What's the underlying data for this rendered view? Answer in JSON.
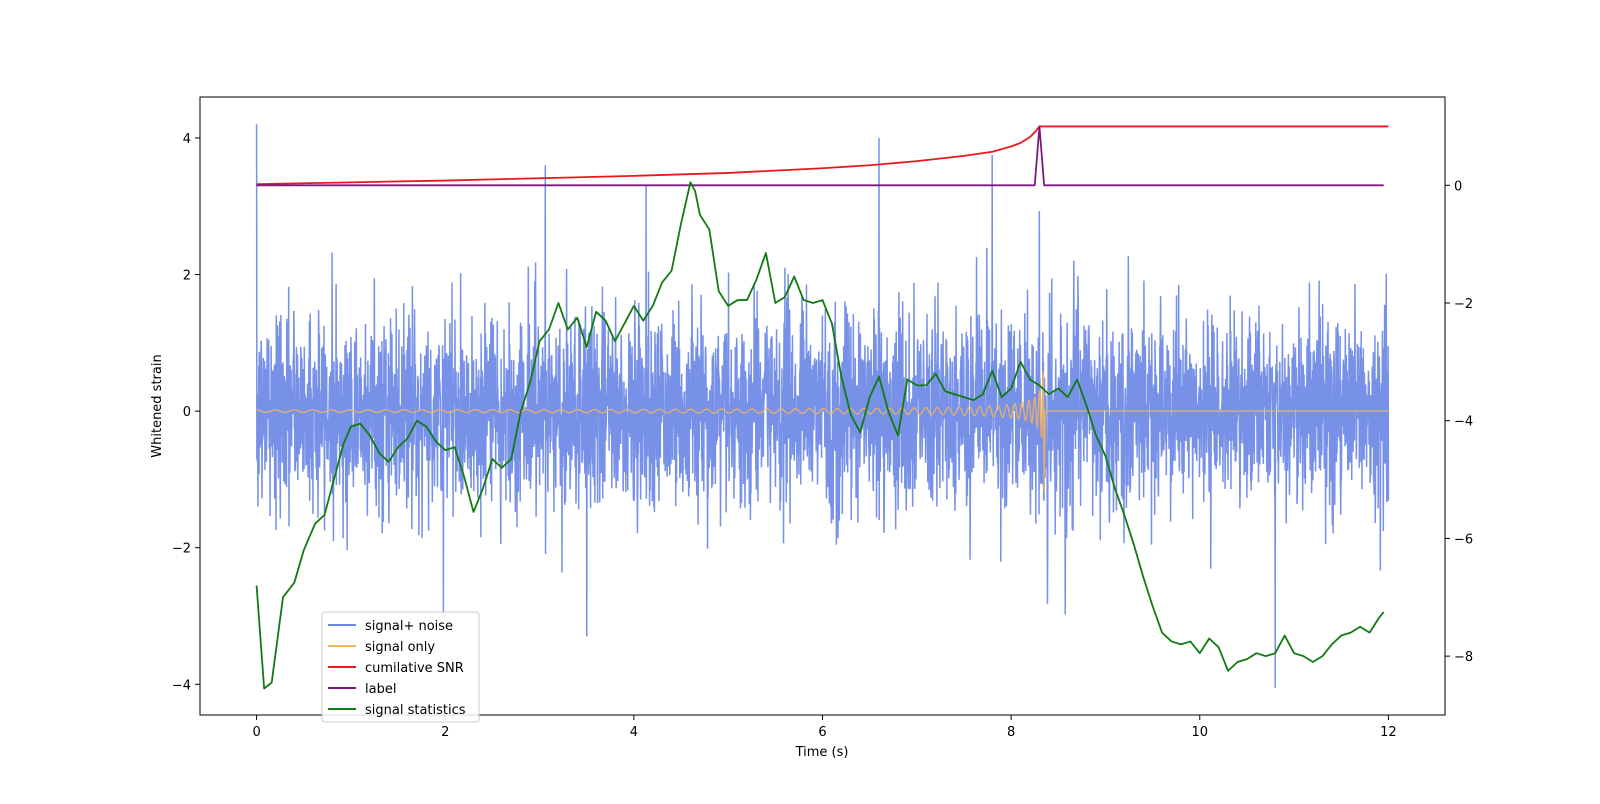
{
  "chart_data": {
    "type": "line",
    "xlabel": "Time (s)",
    "ylabel": "Whitened strain",
    "xlim": [
      -0.6,
      12.6
    ],
    "ylim_left": [
      -4.45,
      4.6
    ],
    "ylim_right": [
      -9.0,
      1.5
    ],
    "x_ticks": [
      0,
      2,
      4,
      6,
      8,
      10,
      12
    ],
    "y_ticks_left": [
      -4,
      -2,
      0,
      2,
      4
    ],
    "y_ticks_right": [
      -8,
      -6,
      -4,
      -2,
      0
    ],
    "legend_position": "lower-left",
    "series": [
      {
        "name": "signal+ noise",
        "color": "#6b88e6",
        "axis": "left",
        "kind": "noise",
        "t_range": [
          0,
          12
        ],
        "amplitude_std": 0.72,
        "notable_spikes": [
          [
            0.0,
            4.2
          ],
          [
            3.06,
            3.6
          ],
          [
            4.13,
            3.3
          ],
          [
            6.6,
            4.0
          ],
          [
            7.8,
            3.75
          ],
          [
            8.3,
            2.93
          ],
          [
            3.5,
            -3.3
          ],
          [
            10.8,
            -4.05
          ],
          [
            1.98,
            -3.0
          ]
        ]
      },
      {
        "name": "signal only",
        "color": "#f5b35a",
        "axis": "left",
        "kind": "chirp",
        "t_range": [
          0,
          8.35
        ],
        "peak_time": 8.35,
        "peak_amplitude": 1.45
      },
      {
        "name": "cumilative SNR",
        "color": "#e8191b",
        "axis": "right",
        "x": [
          0,
          1,
          2,
          3,
          4,
          5,
          6,
          6.5,
          7,
          7.5,
          7.8,
          8.0,
          8.1,
          8.2,
          8.25,
          8.3,
          8.35,
          12.0
        ],
        "values": [
          0.02,
          0.05,
          0.08,
          0.12,
          0.16,
          0.21,
          0.29,
          0.34,
          0.41,
          0.5,
          0.57,
          0.66,
          0.72,
          0.82,
          0.9,
          1.0,
          1.0,
          1.0
        ]
      },
      {
        "name": "label",
        "color": "#7a1a7e",
        "axis": "right",
        "x": [
          0,
          8.25,
          8.3,
          8.35,
          11.95
        ],
        "values": [
          0,
          0,
          1,
          0,
          0
        ]
      },
      {
        "name": "signal statistics",
        "color": "#127a12",
        "axis": "right",
        "x": [
          0,
          0.08,
          0.16,
          0.28,
          0.4,
          0.5,
          0.62,
          0.72,
          0.82,
          0.92,
          1.0,
          1.1,
          1.2,
          1.3,
          1.4,
          1.5,
          1.6,
          1.7,
          1.8,
          1.9,
          2.0,
          2.1,
          2.2,
          2.3,
          2.4,
          2.5,
          2.6,
          2.7,
          2.8,
          2.9,
          3.0,
          3.1,
          3.2,
          3.3,
          3.4,
          3.5,
          3.6,
          3.7,
          3.8,
          3.9,
          4.0,
          4.1,
          4.2,
          4.3,
          4.4,
          4.5,
          4.6,
          4.65,
          4.7,
          4.8,
          4.9,
          5.0,
          5.1,
          5.2,
          5.3,
          5.4,
          5.5,
          5.6,
          5.7,
          5.8,
          5.9,
          6.0,
          6.1,
          6.2,
          6.3,
          6.4,
          6.5,
          6.6,
          6.7,
          6.8,
          6.9,
          7.0,
          7.1,
          7.2,
          7.3,
          7.4,
          7.5,
          7.6,
          7.7,
          7.8,
          7.9,
          8.0,
          8.1,
          8.2,
          8.3,
          8.4,
          8.5,
          8.6,
          8.7,
          8.8,
          8.9,
          9.0,
          9.1,
          9.2,
          9.3,
          9.4,
          9.5,
          9.6,
          9.7,
          9.8,
          9.9,
          10.0,
          10.1,
          10.2,
          10.3,
          10.4,
          10.5,
          10.6,
          10.7,
          10.8,
          10.9,
          11.0,
          11.1,
          11.2,
          11.3,
          11.4,
          11.5,
          11.6,
          11.7,
          11.8,
          11.9,
          11.95
        ],
        "values": [
          -6.8,
          -8.55,
          -8.45,
          -7.0,
          -6.75,
          -6.2,
          -5.75,
          -5.6,
          -5.0,
          -4.4,
          -4.1,
          -4.05,
          -4.25,
          -4.55,
          -4.7,
          -4.45,
          -4.3,
          -4.0,
          -4.1,
          -4.35,
          -4.5,
          -4.45,
          -4.95,
          -5.55,
          -5.15,
          -4.65,
          -4.8,
          -4.65,
          -3.85,
          -3.35,
          -2.65,
          -2.45,
          -2.0,
          -2.45,
          -2.25,
          -2.75,
          -2.15,
          -2.3,
          -2.65,
          -2.35,
          -2.05,
          -2.3,
          -2.05,
          -1.65,
          -1.45,
          -0.65,
          0.05,
          -0.1,
          -0.5,
          -0.75,
          -1.8,
          -2.05,
          -1.95,
          -1.95,
          -1.6,
          -1.15,
          -2.0,
          -1.9,
          -1.55,
          -1.95,
          -2.0,
          -1.95,
          -2.35,
          -3.25,
          -3.9,
          -4.2,
          -3.6,
          -3.25,
          -3.85,
          -4.25,
          -3.3,
          -3.4,
          -3.4,
          -3.2,
          -3.5,
          -3.55,
          -3.6,
          -3.65,
          -3.55,
          -3.15,
          -3.6,
          -3.45,
          -3.0,
          -3.3,
          -3.4,
          -3.55,
          -3.45,
          -3.6,
          -3.3,
          -3.75,
          -4.25,
          -4.6,
          -5.15,
          -5.6,
          -6.1,
          -6.65,
          -7.15,
          -7.6,
          -7.75,
          -7.8,
          -7.75,
          -7.95,
          -7.7,
          -7.85,
          -8.25,
          -8.1,
          -8.05,
          -7.95,
          -8.0,
          -7.95,
          -7.65,
          -7.95,
          -8.0,
          -8.1,
          -8.0,
          -7.8,
          -7.65,
          -7.6,
          -7.5,
          -7.6,
          -7.35,
          -7.25
        ]
      }
    ]
  }
}
